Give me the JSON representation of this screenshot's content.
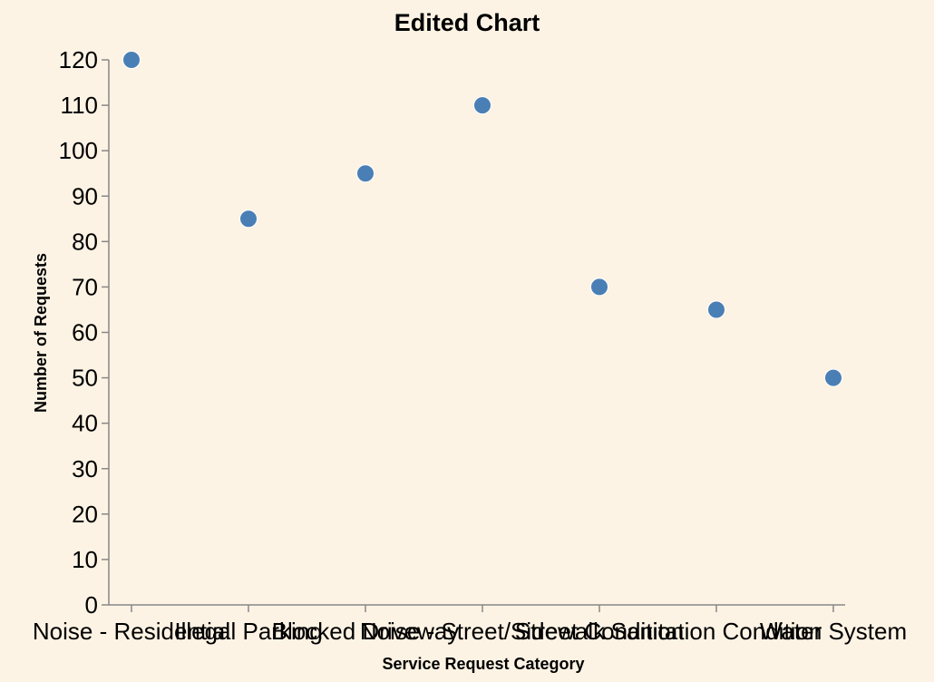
{
  "chart_data": {
    "type": "scatter",
    "title": "Edited Chart",
    "xlabel": "Service Request Category",
    "ylabel": "Number of Requests",
    "categories": [
      "Noise - Residential",
      "Illegal Parking",
      "Blocked Driveway",
      "Noise - Street/Sidewalk",
      "Street Condition",
      "Sanitation Condition",
      "Water System"
    ],
    "values": [
      120,
      85,
      95,
      110,
      70,
      65,
      50
    ],
    "yticks": [
      0,
      10,
      20,
      30,
      40,
      50,
      60,
      70,
      80,
      90,
      100,
      110,
      120
    ],
    "ylim": [
      0,
      120
    ],
    "grid": false,
    "point_color": "#4a7fb5",
    "background": "#fdf3e4"
  }
}
